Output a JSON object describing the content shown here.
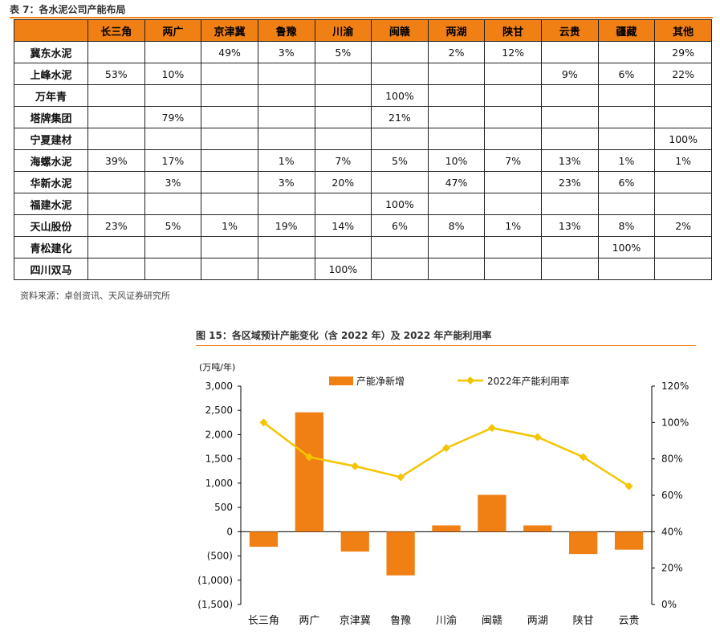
{
  "table": {
    "title": "表 7：各水泥公司产能布局",
    "headers": [
      "",
      "长三角",
      "两广",
      "京津冀",
      "鲁豫",
      "川渝",
      "闽赣",
      "两湖",
      "陕甘",
      "云贵",
      "疆藏",
      "其他"
    ],
    "rows": [
      [
        "冀东水泥",
        "",
        "",
        "49%",
        "3%",
        "5%",
        "",
        "2%",
        "12%",
        "",
        "",
        "29%"
      ],
      [
        "上峰水泥",
        "53%",
        "10%",
        "",
        "",
        "",
        "",
        "",
        "",
        "9%",
        "6%",
        "22%"
      ],
      [
        "万年青",
        "",
        "",
        "",
        "",
        "",
        "100%",
        "",
        "",
        "",
        "",
        ""
      ],
      [
        "塔牌集团",
        "",
        "79%",
        "",
        "",
        "",
        "21%",
        "",
        "",
        "",
        "",
        ""
      ],
      [
        "宁夏建材",
        "",
        "",
        "",
        "",
        "",
        "",
        "",
        "",
        "",
        "",
        "100%"
      ],
      [
        "海螺水泥",
        "39%",
        "17%",
        "",
        "1%",
        "7%",
        "5%",
        "10%",
        "7%",
        "13%",
        "1%",
        "1%"
      ],
      [
        "华新水泥",
        "",
        "3%",
        "",
        "3%",
        "20%",
        "",
        "47%",
        "",
        "23%",
        "6%",
        ""
      ],
      [
        "福建水泥",
        "",
        "",
        "",
        "",
        "",
        "100%",
        "",
        "",
        "",
        "",
        ""
      ],
      [
        "天山股份",
        "23%",
        "5%",
        "1%",
        "19%",
        "14%",
        "6%",
        "8%",
        "1%",
        "13%",
        "8%",
        "2%"
      ],
      [
        "青松建化",
        "",
        "",
        "",
        "",
        "",
        "",
        "",
        "",
        "",
        "100%",
        ""
      ],
      [
        "四川双马",
        "",
        "",
        "",
        "",
        "100%",
        "",
        "",
        "",
        "",
        "",
        ""
      ]
    ],
    "source": "资料来源：卓创资讯、天风证券研究所"
  },
  "figure": {
    "title": "图 15：各区域预计产能变化（含 2022 年）及 2022 年产能利用率"
  },
  "chart_data": {
    "type": "bar",
    "categories": [
      "长三角",
      "两广",
      "京津冀",
      "鲁豫",
      "川渝",
      "闽赣",
      "两湖",
      "陕甘",
      "云贵"
    ],
    "unit_label": "(万吨/年)",
    "y_left": {
      "range": [
        -1500,
        3000
      ],
      "step": 500,
      "tick_labels": [
        "(1,500)",
        "(1,000)",
        "(500)",
        "0",
        "500",
        "1,000",
        "1,500",
        "2,000",
        "2,500",
        "3,000"
      ]
    },
    "y_right": {
      "range": [
        0,
        120
      ],
      "step": 20,
      "tick_labels": [
        "0%",
        "20%",
        "40%",
        "60%",
        "80%",
        "100%",
        "120%"
      ]
    },
    "series": [
      {
        "name": "产能净新增",
        "type": "bar",
        "axis": "left",
        "color": "#f07f14",
        "values": [
          -310,
          2460,
          -410,
          -900,
          130,
          760,
          130,
          -460,
          -370
        ]
      },
      {
        "name": "2022年产能利用率",
        "type": "line",
        "axis": "right",
        "color": "#f5c400",
        "marker": "diamond",
        "values": [
          100,
          81,
          76,
          70,
          86,
          97,
          92,
          81,
          65
        ]
      }
    ],
    "legend_position": "top",
    "grid": false
  }
}
